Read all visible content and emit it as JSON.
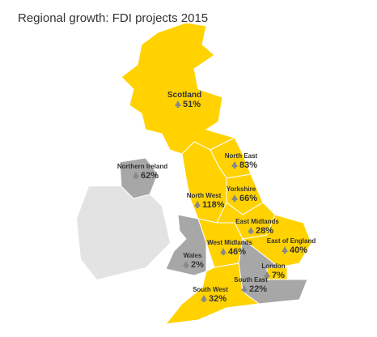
{
  "title": "Regional growth: FDI projects 2015",
  "regions": [
    {
      "name": "Scotland",
      "value": "51%"
    },
    {
      "name": "Northern Ireland",
      "value": "62%"
    },
    {
      "name": "North East",
      "value": "83%"
    },
    {
      "name": "Yorkshire",
      "value": "66%"
    },
    {
      "name": "North West",
      "value": "118%"
    },
    {
      "name": "East Midlands",
      "value": "28%"
    },
    {
      "name": "West Midlands",
      "value": "46%"
    },
    {
      "name": "East of England",
      "value": "40%"
    },
    {
      "name": "Wales",
      "value": "2%"
    },
    {
      "name": "London",
      "value": "7%"
    },
    {
      "name": "South East",
      "value": "22%"
    },
    {
      "name": "South West",
      "value": "32%"
    }
  ]
}
